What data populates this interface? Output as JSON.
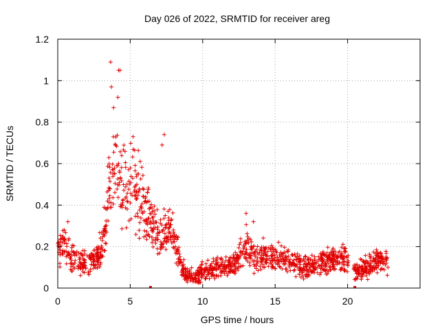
{
  "chart_data": {
    "type": "scatter",
    "title": "Day 026 of 2022, SRMTID for receiver areg",
    "xlabel": "GPS time / hours",
    "ylabel": "SRMTID / TECUs",
    "xlim": [
      0,
      25
    ],
    "ylim": [
      0,
      1.2
    ],
    "xticks": [
      0,
      5,
      10,
      15,
      20
    ],
    "xtick_labels": [
      "0",
      "5",
      "10",
      "15",
      "20"
    ],
    "yticks": [
      0,
      0.2,
      0.4,
      0.6,
      0.8,
      1.0,
      1.2
    ],
    "ytick_labels": [
      "0",
      "0.2",
      "0.4",
      "0.6",
      "0.8",
      "1",
      "1.2"
    ],
    "grid": true,
    "marker": "+",
    "color": "#e00000",
    "series": [
      {
        "name": "SRMTID",
        "profile_x": [
          0,
          0.5,
          1,
          1.5,
          2,
          2.5,
          3,
          3.3,
          3.6,
          4.0,
          4.4,
          5.0,
          5.5,
          6.0,
          6.5,
          7.0,
          7.5,
          8.0,
          8.5,
          9.0,
          9.5,
          10,
          11,
          12,
          12.5,
          13,
          13.5,
          14,
          15,
          16,
          17,
          18,
          19,
          19.9,
          20.5,
          21,
          22,
          22.8
        ],
        "profile_mean": [
          0.17,
          0.21,
          0.14,
          0.13,
          0.12,
          0.13,
          0.18,
          0.3,
          0.5,
          0.58,
          0.52,
          0.5,
          0.45,
          0.38,
          0.3,
          0.25,
          0.28,
          0.25,
          0.1,
          0.06,
          0.05,
          0.08,
          0.1,
          0.1,
          0.15,
          0.2,
          0.17,
          0.15,
          0.14,
          0.13,
          0.1,
          0.12,
          0.13,
          0.15,
          0.08,
          0.09,
          0.13,
          0.12
        ],
        "peaks": [
          {
            "x": 3.65,
            "y": 1.09
          },
          {
            "x": 3.7,
            "y": 0.97
          },
          {
            "x": 4.2,
            "y": 1.05
          },
          {
            "x": 4.3,
            "y": 1.05
          },
          {
            "x": 4.15,
            "y": 0.92
          },
          {
            "x": 3.85,
            "y": 0.87
          },
          {
            "x": 5.2,
            "y": 0.73
          },
          {
            "x": 7.35,
            "y": 0.74
          },
          {
            "x": 7.2,
            "y": 0.69
          },
          {
            "x": 13.0,
            "y": 0.36
          },
          {
            "x": 13.5,
            "y": 0.32
          },
          {
            "x": 0.7,
            "y": 0.32
          }
        ],
        "gap_hours": [
          20.1,
          20.4
        ],
        "gap_markers": [
          {
            "x": 6.4,
            "y": 0
          },
          {
            "x": 20.5,
            "y": 0
          }
        ]
      }
    ]
  }
}
